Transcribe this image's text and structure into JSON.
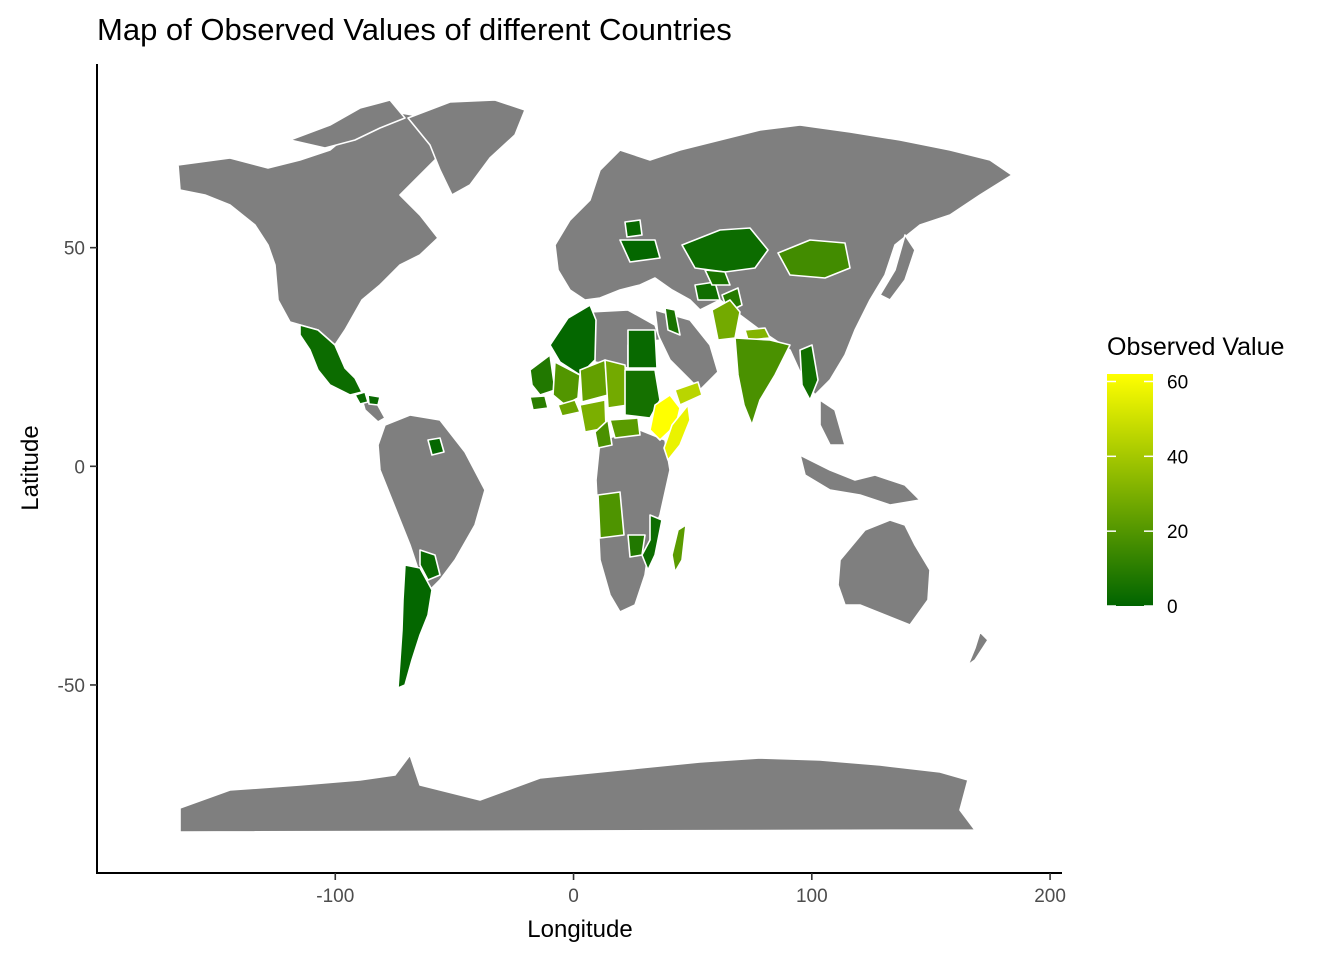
{
  "chart_data": {
    "type": "map",
    "title": "Map of Observed Values of different Countries",
    "xlabel": "Longitude",
    "ylabel": "Latitude",
    "xlim": [
      -200,
      205
    ],
    "ylim": [
      -93,
      92
    ],
    "x_ticks": [
      -100,
      0,
      100,
      200
    ],
    "y_ticks": [
      50,
      0,
      -50
    ],
    "x_tick_labels": [
      "-100",
      "0",
      "100",
      "200"
    ],
    "y_tick_labels": [
      "50",
      "0",
      "-50"
    ],
    "grid": false,
    "no_data_color": "#7f7f7f",
    "border_color": "#ffffff",
    "legend": {
      "title": "Observed Value",
      "placement": "right",
      "min": 0,
      "max": 62,
      "ticks": [
        0,
        20,
        40,
        60
      ],
      "tick_labels": [
        "0",
        "20",
        "40",
        "60"
      ],
      "color_low": "#006400",
      "color_high": "#ffff00"
    },
    "regions": [
      {
        "name": "Mexico",
        "value": 3
      },
      {
        "name": "Guatemala",
        "value": 2
      },
      {
        "name": "Honduras",
        "value": 2
      },
      {
        "name": "Guyana",
        "value": 1
      },
      {
        "name": "Argentina",
        "value": 1
      },
      {
        "name": "Paraguay",
        "value": 2
      },
      {
        "name": "Algeria",
        "value": 1
      },
      {
        "name": "Mauritania",
        "value": 8
      },
      {
        "name": "Mali",
        "value": 20
      },
      {
        "name": "Niger",
        "value": 24
      },
      {
        "name": "Chad",
        "value": 28
      },
      {
        "name": "Nigeria",
        "value": 30
      },
      {
        "name": "Burkina Faso",
        "value": 26
      },
      {
        "name": "Senegal",
        "value": 10
      },
      {
        "name": "Cameroon",
        "value": 18
      },
      {
        "name": "Central African Republic",
        "value": 22
      },
      {
        "name": "Egypt",
        "value": 2
      },
      {
        "name": "Sudan",
        "value": 5
      },
      {
        "name": "Ethiopia",
        "value": 62
      },
      {
        "name": "Somalia",
        "value": 57
      },
      {
        "name": "Yemen",
        "value": 45
      },
      {
        "name": "Angola",
        "value": 19
      },
      {
        "name": "Zambia",
        "value": 8
      },
      {
        "name": "Mozambique",
        "value": 3
      },
      {
        "name": "Madagascar",
        "value": 22
      },
      {
        "name": "Israel",
        "value": 6
      },
      {
        "name": "Ukraine",
        "value": 1
      },
      {
        "name": "Belarus",
        "value": 2
      },
      {
        "name": "Kazakhstan",
        "value": 3
      },
      {
        "name": "Turkmenistan",
        "value": 4
      },
      {
        "name": "Uzbekistan",
        "value": 6
      },
      {
        "name": "Mongolia",
        "value": 16
      },
      {
        "name": "Afghanistan",
        "value": 9
      },
      {
        "name": "Pakistan",
        "value": 28
      },
      {
        "name": "Nepal",
        "value": 32
      },
      {
        "name": "India",
        "value": 18
      },
      {
        "name": "Myanmar",
        "value": 4
      }
    ]
  }
}
